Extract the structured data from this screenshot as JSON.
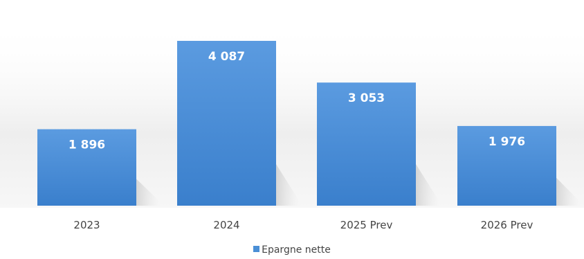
{
  "chart_data": {
    "type": "bar",
    "title": "",
    "xlabel": "",
    "ylabel": "",
    "categories": [
      "2023",
      "2024",
      "2025 Prev",
      "2026 Prev"
    ],
    "series": [
      {
        "name": "Epargne nette",
        "values": [
          1896,
          4087,
          3053,
          1976
        ],
        "value_labels": [
          "1 896",
          "4 087",
          "3 053",
          "1 976"
        ],
        "color": "#4a8fd6"
      }
    ],
    "ylim": [
      0,
      4087
    ],
    "grid": false,
    "legend_position": "bottom",
    "data_labels": "inside-top"
  },
  "colors": {
    "bar_top": "#5b9be0",
    "bar_bottom": "#3a7fcc",
    "background_band": "#f4f4f4"
  }
}
